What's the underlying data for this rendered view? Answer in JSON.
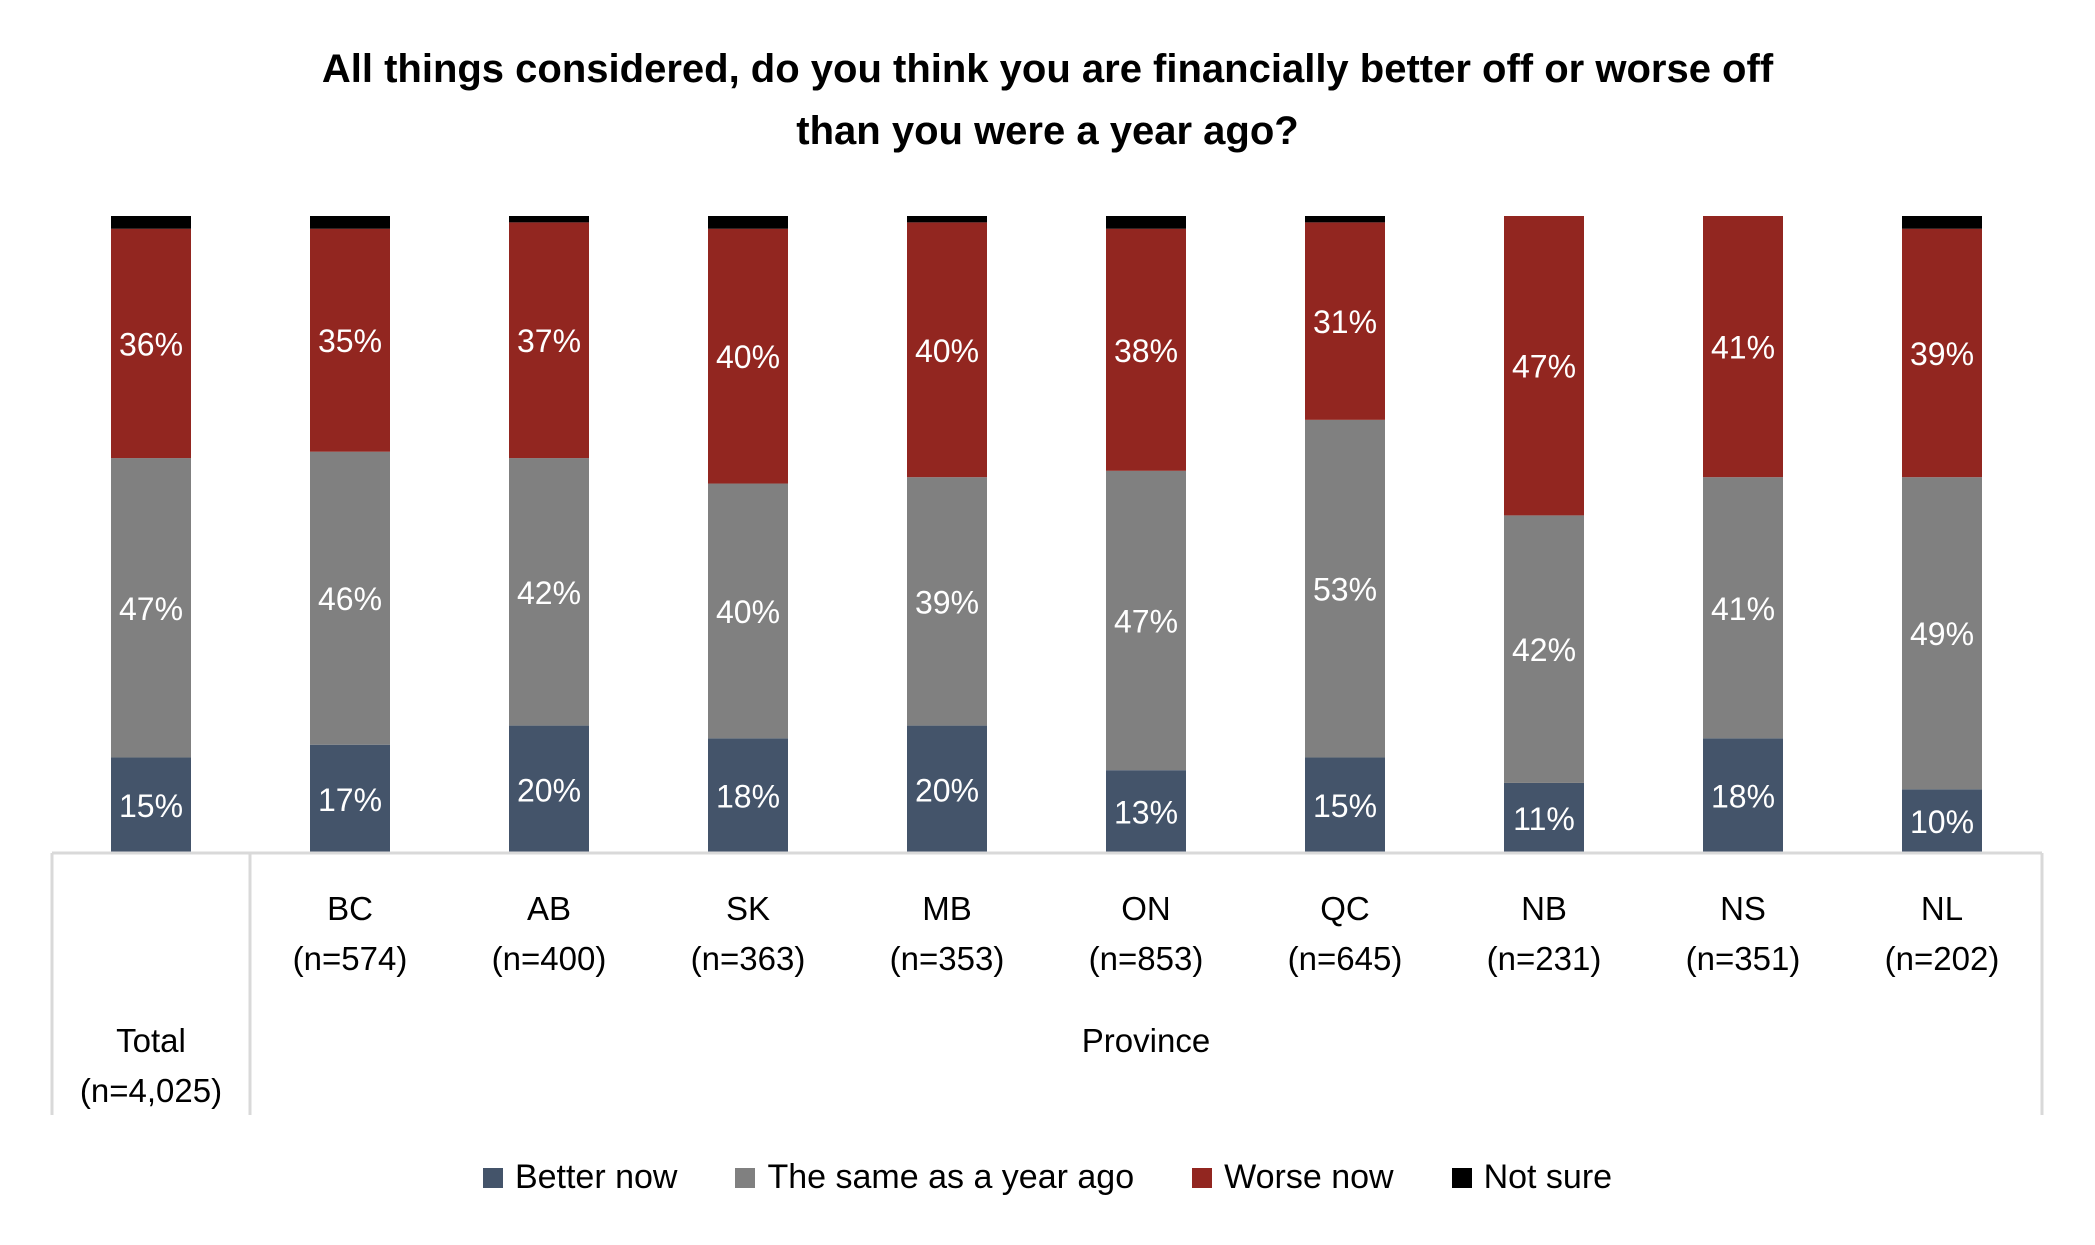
{
  "chart_data": {
    "type": "bar",
    "stacked": true,
    "title": "All things considered, do you think you are financially better off or worse off than you were a year ago?",
    "title_lines": [
      "All things considered, do you think you are financially better off or worse off",
      "than you were a year ago?"
    ],
    "categories": [
      "Total",
      "BC",
      "AB",
      "SK",
      "MB",
      "ON",
      "QC",
      "NB",
      "NS",
      "NL"
    ],
    "category_n": [
      "(n=4,025)",
      "(n=574)",
      "(n=400)",
      "(n=363)",
      "(n=353)",
      "(n=853)",
      "(n=645)",
      "(n=231)",
      "(n=351)",
      "(n=202)"
    ],
    "group_labels": {
      "total": "Total",
      "province": "Province"
    },
    "ylim": [
      0,
      100
    ],
    "units": "%",
    "series": [
      {
        "name": "Better now",
        "color": "#44546A",
        "values": [
          15,
          17,
          20,
          18,
          20,
          13,
          15,
          11,
          18,
          10
        ]
      },
      {
        "name": "The same as a year ago",
        "color": "#808080",
        "values": [
          47,
          46,
          42,
          40,
          39,
          47,
          53,
          42,
          41,
          49
        ]
      },
      {
        "name": "Worse now",
        "color": "#922620",
        "values": [
          36,
          35,
          37,
          40,
          40,
          38,
          31,
          47,
          41,
          39
        ]
      },
      {
        "name": "Not sure",
        "color": "#000000",
        "values": [
          2,
          2,
          1,
          2,
          1,
          2,
          1,
          0,
          0,
          2
        ]
      }
    ],
    "data_labels_shown_for": [
      "Better now",
      "The same as a year ago",
      "Worse now"
    ],
    "legend_position": "bottom",
    "grid": false
  }
}
